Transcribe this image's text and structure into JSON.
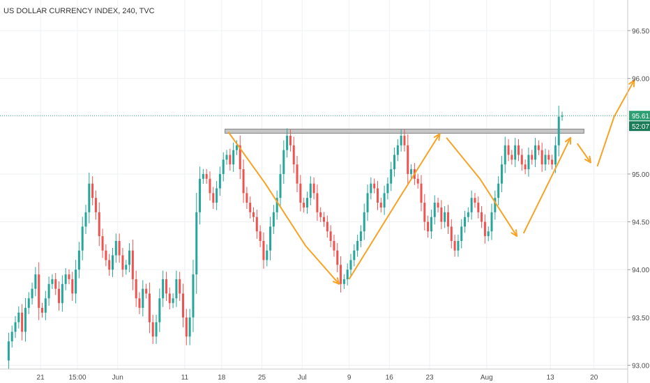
{
  "chart_data": {
    "type": "candlestick",
    "title": "US DOLLAR CURRENCY INDEX, 240, TVC",
    "y_ticks": [
      "96.50",
      "96.00",
      "95.00",
      "94.50",
      "94.00",
      "93.50",
      "93.00"
    ],
    "y_tick_values": [
      96.5,
      96.0,
      95.0,
      94.5,
      94.0,
      93.5,
      93.0
    ],
    "ylim": [
      92.96,
      96.82
    ],
    "x_ticks": [
      "21",
      "15:00",
      "Jun",
      "11",
      "18",
      "25",
      "Jul",
      "9",
      "16",
      "23",
      "Aug",
      "13",
      "20"
    ],
    "x_tick_index": [
      10,
      21,
      33,
      53,
      64,
      76,
      88,
      102,
      114,
      126,
      143,
      162,
      175
    ],
    "x_range": [
      0,
      184
    ],
    "last_price": {
      "label": "95.61",
      "value": 95.61
    },
    "countdown_label": "52:07",
    "resistance_zone": {
      "low": 95.43,
      "high": 95.47,
      "start_index": 65,
      "end_index": 172
    },
    "candles": {
      "open": [
        93.05,
        93.25,
        93.35,
        93.45,
        93.55,
        93.35,
        93.6,
        93.7,
        93.8,
        93.95,
        93.6,
        93.55,
        93.7,
        93.85,
        93.9,
        93.8,
        93.65,
        93.85,
        93.95,
        93.9,
        93.75,
        94.0,
        94.2,
        94.45,
        94.6,
        94.9,
        94.75,
        94.6,
        94.35,
        94.2,
        94.1,
        94.0,
        94.15,
        94.3,
        94.15,
        94.0,
        94.05,
        94.2,
        93.9,
        93.7,
        93.6,
        93.8,
        93.75,
        93.45,
        93.3,
        93.45,
        93.7,
        93.9,
        93.75,
        93.65,
        93.7,
        93.9,
        93.75,
        93.5,
        93.3,
        93.5,
        93.95,
        94.6,
        94.95,
        95.0,
        94.95,
        94.8,
        94.7,
        94.85,
        95.0,
        95.15,
        95.2,
        95.1,
        95.25,
        95.3,
        95.05,
        94.8,
        94.7,
        94.6,
        94.55,
        94.4,
        94.3,
        94.1,
        94.2,
        94.45,
        94.6,
        94.75,
        95.0,
        95.25,
        95.4,
        95.3,
        95.1,
        94.9,
        94.7,
        94.65,
        94.75,
        94.9,
        94.8,
        94.6,
        94.55,
        94.5,
        94.4,
        94.3,
        94.2,
        94.05,
        93.85,
        93.9,
        94.0,
        94.1,
        94.2,
        94.3,
        94.4,
        94.6,
        94.8,
        94.9,
        94.85,
        94.7,
        94.65,
        94.8,
        94.9,
        95.05,
        95.2,
        95.3,
        95.4,
        95.3,
        95.0,
        95.05,
        94.95,
        94.9,
        94.7,
        94.5,
        94.4,
        94.55,
        94.7,
        94.65,
        94.5,
        94.6,
        94.45,
        94.3,
        94.2,
        94.3,
        94.45,
        94.55,
        94.6,
        94.75,
        94.7,
        94.6,
        94.5,
        94.35,
        94.4,
        94.6,
        94.75,
        94.9,
        95.1,
        95.3,
        95.2,
        95.15,
        95.3,
        95.2,
        95.1,
        95.05,
        95.2,
        95.15,
        95.3,
        95.25,
        95.1,
        95.2,
        95.15,
        95.1,
        95.3,
        95.6
      ],
      "close": [
        93.25,
        93.35,
        93.45,
        93.55,
        93.35,
        93.6,
        93.7,
        93.8,
        93.95,
        93.6,
        93.55,
        93.7,
        93.85,
        93.9,
        93.8,
        93.65,
        93.85,
        93.95,
        93.9,
        93.75,
        94.0,
        94.2,
        94.45,
        94.6,
        94.9,
        94.75,
        94.6,
        94.35,
        94.2,
        94.1,
        94.0,
        94.15,
        94.3,
        94.15,
        94.0,
        94.05,
        94.2,
        93.9,
        93.7,
        93.6,
        93.8,
        93.75,
        93.45,
        93.3,
        93.45,
        93.7,
        93.9,
        93.75,
        93.65,
        93.7,
        93.9,
        93.75,
        93.5,
        93.3,
        93.5,
        93.95,
        94.6,
        94.95,
        95.0,
        94.95,
        94.8,
        94.7,
        94.85,
        95.0,
        95.15,
        95.2,
        95.1,
        95.25,
        95.3,
        95.05,
        94.8,
        94.7,
        94.6,
        94.55,
        94.4,
        94.3,
        94.1,
        94.2,
        94.45,
        94.6,
        94.75,
        95.0,
        95.25,
        95.4,
        95.3,
        95.1,
        94.9,
        94.7,
        94.65,
        94.75,
        94.9,
        94.8,
        94.6,
        94.55,
        94.5,
        94.4,
        94.3,
        94.2,
        94.05,
        93.85,
        93.9,
        94.0,
        94.1,
        94.2,
        94.3,
        94.4,
        94.6,
        94.8,
        94.9,
        94.85,
        94.7,
        94.65,
        94.8,
        94.9,
        95.05,
        95.2,
        95.3,
        95.4,
        95.3,
        95.0,
        95.05,
        94.95,
        94.9,
        94.7,
        94.5,
        94.4,
        94.55,
        94.7,
        94.65,
        94.5,
        94.6,
        94.45,
        94.3,
        94.2,
        94.3,
        94.45,
        94.55,
        94.6,
        94.75,
        94.7,
        94.6,
        94.5,
        94.35,
        94.4,
        94.6,
        94.75,
        94.9,
        95.1,
        95.3,
        95.2,
        95.15,
        95.3,
        95.2,
        95.1,
        95.05,
        95.2,
        95.15,
        95.3,
        95.25,
        95.1,
        95.2,
        95.15,
        95.1,
        95.3,
        95.6,
        95.61
      ]
    },
    "arrow_paths": [
      [
        [
          66,
          95.44
        ],
        [
          77,
          94.9
        ],
        [
          89,
          94.25
        ],
        [
          99,
          93.85
        ]
      ],
      [
        [
          102,
          93.9
        ],
        [
          117,
          94.75
        ],
        [
          129,
          95.42
        ]
      ],
      [
        [
          131,
          95.38
        ],
        [
          141,
          94.95
        ],
        [
          152,
          94.35
        ]
      ],
      [
        [
          154,
          94.38
        ],
        [
          162,
          94.95
        ],
        [
          168,
          95.38
        ]
      ],
      [
        [
          170,
          95.32
        ],
        [
          174,
          95.12
        ]
      ],
      [
        [
          176,
          95.08
        ],
        [
          181,
          95.6
        ],
        [
          187,
          95.98
        ]
      ]
    ],
    "colors": {
      "up": "#26a69a",
      "down": "#ef5350",
      "arrow": "#f7a325",
      "zone_fill": "#c6c6c6",
      "zone_stroke": "#808080",
      "price_line": "#2e9e73",
      "countdown_bg": "#1b7a57"
    }
  }
}
